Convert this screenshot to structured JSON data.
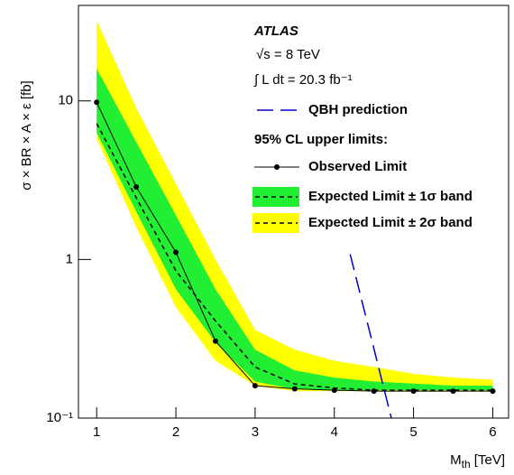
{
  "chart_data": {
    "type": "line",
    "ylabel": "σ × BR × A × ε  [fb]",
    "xlabel": {
      "main": "M",
      "sub": "th",
      "unit": " [TeV]"
    },
    "x": [
      1,
      1.5,
      2,
      2.5,
      3,
      3.5,
      4,
      4.5,
      5,
      5.5,
      6
    ],
    "xlim": [
      0.77,
      6.2
    ],
    "xticks": [
      1,
      2,
      3,
      4,
      5,
      6
    ],
    "ylim": [
      0.1,
      40
    ],
    "yticks": [
      {
        "value": 0.1,
        "label": "10⁻¹"
      },
      1,
      10
    ],
    "log_y": true,
    "annotations": [
      "ATLAS",
      "√s = 8 TeV",
      "∫ L dt = 20.3 fb⁻¹"
    ],
    "legend_header": "95% CL upper limits:",
    "observed": {
      "name": "Observed Limit",
      "color": "#000000",
      "values": [
        9.8,
        2.87,
        1.11,
        0.306,
        0.16,
        0.153,
        0.15,
        0.148,
        0.148,
        0.148,
        0.148
      ]
    },
    "expected": {
      "color": "#000000",
      "values": [
        7.2,
        2.45,
        0.85,
        0.41,
        0.21,
        0.164,
        0.155,
        0.15,
        0.15,
        0.15,
        0.15
      ]
    },
    "band1": {
      "name": "Expected Limit ± 1σ band",
      "color": "#22ee33",
      "lower": [
        6.3,
        2.0,
        0.65,
        0.3,
        0.17,
        0.152,
        0.15,
        0.15,
        0.15,
        0.15,
        0.15
      ],
      "upper": [
        16,
        5.5,
        1.9,
        0.65,
        0.27,
        0.2,
        0.18,
        0.17,
        0.165,
        0.16,
        0.16
      ]
    },
    "band2": {
      "name": "Expected Limit ± 2σ band",
      "color": "#ffff00",
      "lower": [
        5.8,
        1.6,
        0.5,
        0.23,
        0.16,
        0.148,
        0.148,
        0.148,
        0.148,
        0.148,
        0.148
      ],
      "upper": [
        32,
        9,
        3,
        1.0,
        0.36,
        0.27,
        0.23,
        0.21,
        0.19,
        0.18,
        0.175
      ]
    },
    "qbh": {
      "name": "QBH prediction",
      "color": "#0000cc",
      "x": [
        4.2,
        4.72
      ],
      "values": [
        1.08,
        0.1
      ]
    }
  }
}
